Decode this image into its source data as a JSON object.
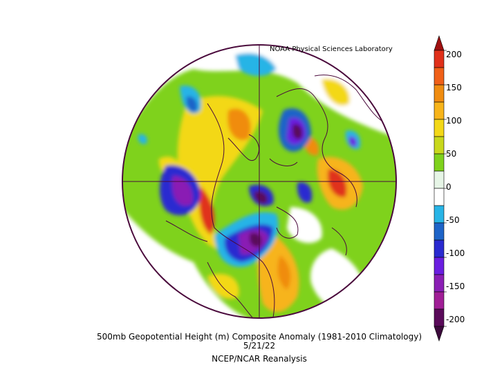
{
  "header": {
    "credit": "NOAA Physical Sciences Laboratory"
  },
  "caption": {
    "line1": "500mb Geopotential Height (m) Composite Anomaly (1981-2010 Climatology)",
    "line2": "5/21/22",
    "line3": "NCEP/NCAR Reanalysis"
  },
  "colorbar": {
    "levels": [
      "200",
      "150",
      "100",
      "50",
      "0",
      "-50",
      "-100",
      "-150",
      "-200"
    ],
    "colors": {
      "max_arrow": "#a01010",
      "200": "#e0301a",
      "175": "#f06018",
      "150": "#f08c10",
      "125": "#f7b41a",
      "100": "#f3d818",
      "75": "#c8d81c",
      "50": "#7fd21c",
      "25": "#e6f5e6",
      "-25": "#ffffff",
      "-50": "#28b4e6",
      "-75": "#1e64c8",
      "-100": "#2a2ad0",
      "-125": "#6a1ee0",
      "-150": "#8a1eb4",
      "-175": "#a01e96",
      "-200": "#5a0a5a",
      "min_arrow": "#3c0a3c"
    }
  },
  "map": {
    "projection": "north-polar-stereographic",
    "outline_color": "#4a0a3c",
    "field": "500mb geopotential height anomaly"
  }
}
